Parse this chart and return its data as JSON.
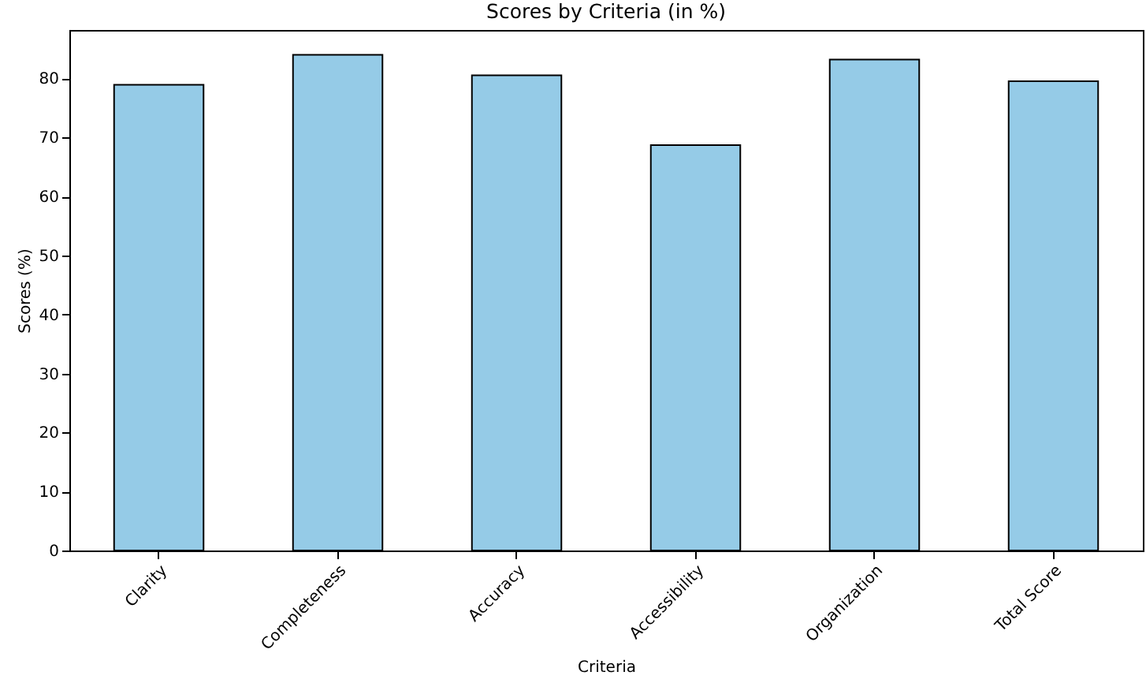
{
  "chart_data": {
    "type": "bar",
    "title": "Scores by Criteria (in %)",
    "xlabel": "Criteria",
    "ylabel": "Scores (%)",
    "categories": [
      "Clarity",
      "Completeness",
      "Accuracy",
      "Accessibility",
      "Organization",
      "Total Score"
    ],
    "values": [
      78.9,
      84.0,
      80.5,
      68.7,
      83.2,
      79.5
    ],
    "color": "#95cbe7",
    "ylim": [
      0,
      88.2
    ],
    "yticks": [
      0,
      10,
      20,
      30,
      40,
      50,
      60,
      70,
      80
    ],
    "grid": false
  }
}
